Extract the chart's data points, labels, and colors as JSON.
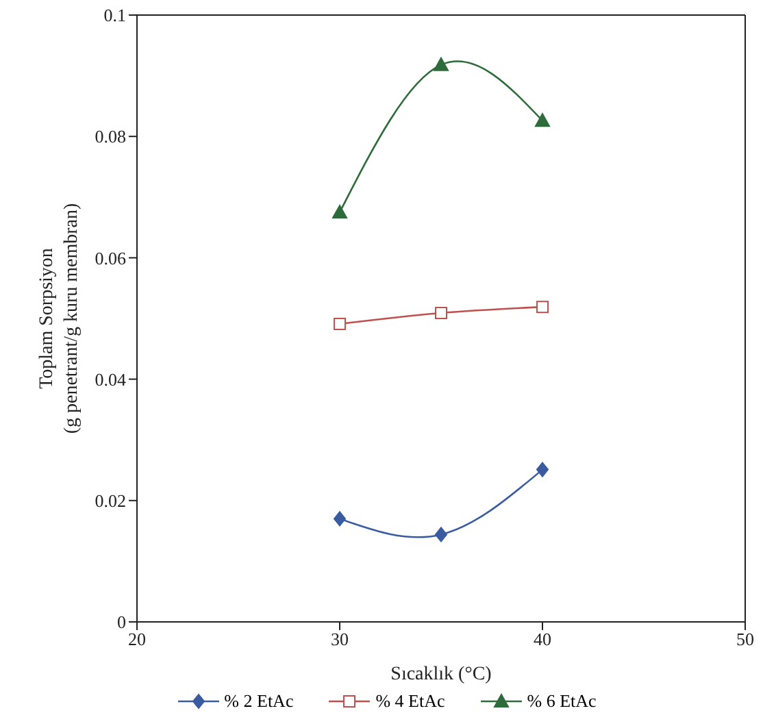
{
  "chart_data": {
    "type": "line",
    "xlabel": "Sıcaklık (°C)",
    "ylabel": "Toplam Sorpsiyon\n(g penetrant/g kuru membran)",
    "x": [
      30,
      35,
      40
    ],
    "xlim": [
      20,
      50
    ],
    "xticks": [
      20,
      30,
      40,
      50
    ],
    "ylim": [
      0,
      0.1
    ],
    "yticks": [
      0,
      0.02,
      0.04,
      0.06,
      0.08,
      0.1
    ],
    "grid": false,
    "legend": "bottom",
    "series": [
      {
        "name": "% 2 EtAc",
        "color": "#3a5ba0",
        "marker": "diamond",
        "values": [
          0.017,
          0.0144,
          0.0251
        ]
      },
      {
        "name": "% 4 EtAc",
        "color": "#c0504d",
        "marker": "square",
        "values": [
          0.0491,
          0.0509,
          0.0519
        ]
      },
      {
        "name": "% 6 EtAc",
        "color": "#2e6b3a",
        "marker": "triangle",
        "values": [
          0.0675,
          0.0918,
          0.0826
        ]
      }
    ]
  }
}
